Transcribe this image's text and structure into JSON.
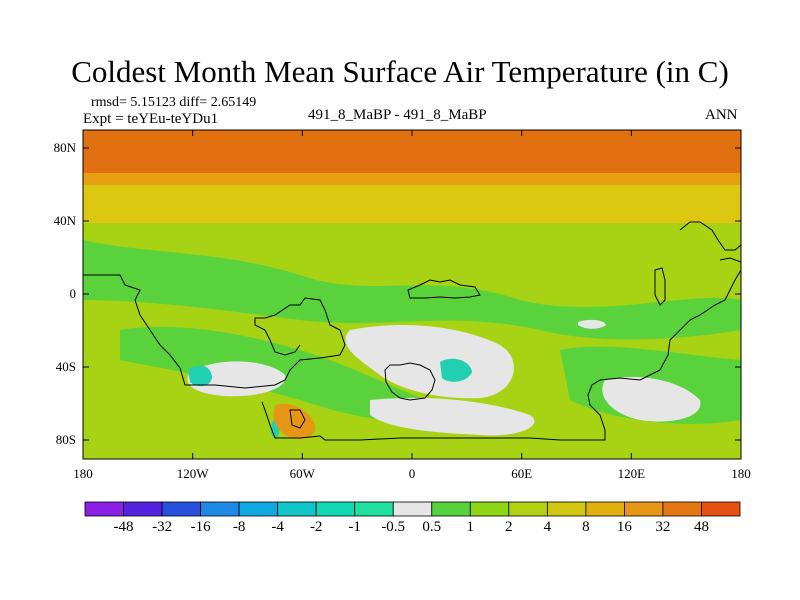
{
  "title": "Coldest Month Mean Surface Air Temperature (in C)",
  "stats": "rmsd= 5.15123  diff= 2.65149",
  "expt": "Expt = teYEu-teYDu1",
  "case": "491_8_MaBP - 491_8_MaBP",
  "season": "ANN",
  "lat_labels": [
    "80N",
    "40N",
    "0",
    "40S",
    "80S"
  ],
  "lon_labels": [
    "180",
    "120W",
    "60W",
    "0",
    "60E",
    "120E",
    "180"
  ],
  "colorbar": {
    "labels": [
      "-48",
      "-32",
      "-16",
      "-8",
      "-4",
      "-2",
      "-1",
      "-0.5",
      "0.5",
      "1",
      "2",
      "4",
      "8",
      "16",
      "32",
      "48"
    ],
    "colors": [
      "#8a1fe6",
      "#5523e0",
      "#2850dc",
      "#1f8ae6",
      "#10a8e0",
      "#10c4c8",
      "#12d8b4",
      "#20e0a0",
      "#e6e6e6",
      "#55d23c",
      "#8cd614",
      "#b4d214",
      "#d2c814",
      "#e0b00e",
      "#e69614",
      "#e67814",
      "#e65012"
    ]
  },
  "colors": {
    "band_north": "#e07010",
    "band_orange": "#e6a010",
    "band_yellow": "#dcc810",
    "base_green": "#a8d214",
    "bright_green": "#5ad23c",
    "near_zero": "#e6e6e6",
    "cyan": "#20d0b0",
    "orange_spot": "#e69614"
  }
}
